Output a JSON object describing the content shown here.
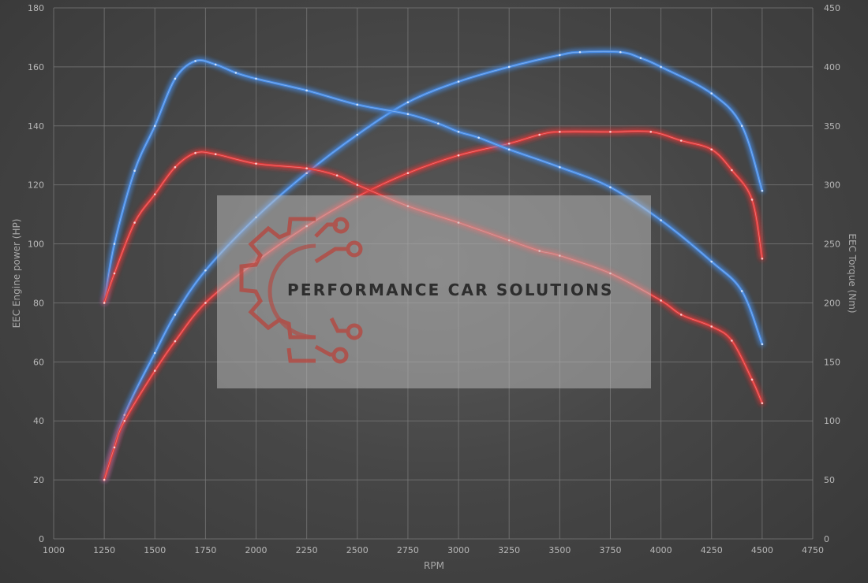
{
  "chart_data": {
    "type": "line",
    "title": "",
    "xlabel": "RPM",
    "ylabel_left": "EEC Engine power (HP)",
    "ylabel_right": "EEC Torque (Nm)",
    "xlim": [
      1000,
      4750
    ],
    "ylim_left": [
      0,
      180
    ],
    "ylim_right": [
      0,
      450
    ],
    "x_ticks": [
      1000,
      1250,
      1500,
      1750,
      2000,
      2250,
      2500,
      2750,
      3000,
      3250,
      3500,
      3750,
      4000,
      4250,
      4500,
      4750
    ],
    "y_left_ticks": [
      0,
      20,
      40,
      60,
      80,
      100,
      120,
      140,
      160,
      180
    ],
    "y_right_ticks": [
      0,
      50,
      100,
      150,
      200,
      250,
      300,
      350,
      400,
      450
    ],
    "grid": true,
    "series": [
      {
        "axis": "left",
        "color": "#4a8ee8",
        "points": [
          [
            1250,
            20
          ],
          [
            1350,
            42
          ],
          [
            1500,
            63
          ],
          [
            1600,
            76
          ],
          [
            1750,
            91
          ],
          [
            2000,
            109
          ],
          [
            2250,
            124
          ],
          [
            2500,
            137
          ],
          [
            2750,
            148
          ],
          [
            3000,
            155
          ],
          [
            3250,
            160
          ],
          [
            3500,
            164
          ],
          [
            3600,
            165
          ],
          [
            3800,
            165
          ],
          [
            3900,
            163
          ],
          [
            4000,
            160
          ],
          [
            4250,
            151
          ],
          [
            4400,
            140
          ],
          [
            4500,
            118
          ]
        ]
      },
      {
        "axis": "left",
        "color": "#e03a3a",
        "points": [
          [
            1250,
            20
          ],
          [
            1300,
            31
          ],
          [
            1350,
            40
          ],
          [
            1500,
            57
          ],
          [
            1600,
            67
          ],
          [
            1750,
            80
          ],
          [
            2000,
            94
          ],
          [
            2250,
            106
          ],
          [
            2500,
            116
          ],
          [
            2750,
            124
          ],
          [
            3000,
            130
          ],
          [
            3250,
            134
          ],
          [
            3400,
            137
          ],
          [
            3500,
            138
          ],
          [
            3750,
            138
          ],
          [
            3950,
            138
          ],
          [
            4100,
            135
          ],
          [
            4250,
            132
          ],
          [
            4350,
            125
          ],
          [
            4450,
            115
          ],
          [
            4500,
            95
          ]
        ]
      },
      {
        "axis": "right",
        "color": "#4a8ee8",
        "points": [
          [
            1250,
            200
          ],
          [
            1300,
            250
          ],
          [
            1400,
            312
          ],
          [
            1500,
            350
          ],
          [
            1600,
            390
          ],
          [
            1700,
            405
          ],
          [
            1800,
            402
          ],
          [
            1900,
            395
          ],
          [
            2000,
            390
          ],
          [
            2250,
            380
          ],
          [
            2500,
            368
          ],
          [
            2750,
            360
          ],
          [
            2900,
            352
          ],
          [
            3000,
            345
          ],
          [
            3100,
            340
          ],
          [
            3250,
            330
          ],
          [
            3500,
            315
          ],
          [
            3750,
            298
          ],
          [
            4000,
            270
          ],
          [
            4250,
            235
          ],
          [
            4400,
            210
          ],
          [
            4500,
            165
          ]
        ]
      },
      {
        "axis": "right",
        "color": "#e03a3a",
        "points": [
          [
            1250,
            200
          ],
          [
            1300,
            225
          ],
          [
            1400,
            268
          ],
          [
            1500,
            292
          ],
          [
            1600,
            315
          ],
          [
            1700,
            327
          ],
          [
            1800,
            326
          ],
          [
            2000,
            318
          ],
          [
            2250,
            314
          ],
          [
            2400,
            308
          ],
          [
            2500,
            300
          ],
          [
            2750,
            282
          ],
          [
            3000,
            268
          ],
          [
            3250,
            253
          ],
          [
            3400,
            244
          ],
          [
            3500,
            240
          ],
          [
            3750,
            225
          ],
          [
            4000,
            202
          ],
          [
            4100,
            190
          ],
          [
            4250,
            180
          ],
          [
            4350,
            168
          ],
          [
            4450,
            135
          ],
          [
            4500,
            115
          ]
        ]
      }
    ]
  },
  "watermark": {
    "text": "PERFORMANCE CAR SOLUTIONS",
    "logo": "gear-circuit-logo"
  }
}
